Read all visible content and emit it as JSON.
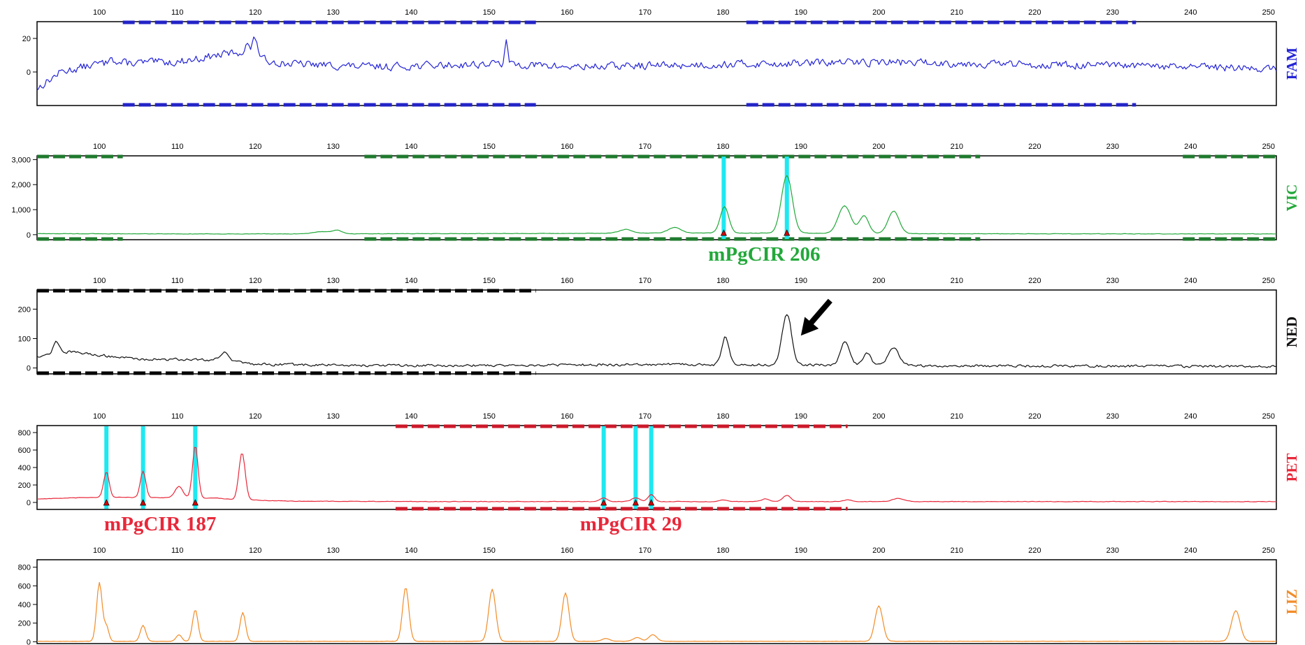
{
  "chart_data": {
    "type": "line",
    "x_ticks": [
      100,
      110,
      120,
      130,
      140,
      150,
      160,
      170,
      180,
      190,
      200,
      210,
      220,
      230,
      240,
      250
    ],
    "x_range": [
      92,
      251
    ],
    "panels": [
      {
        "dye": "FAM",
        "color": "#2323d6",
        "y_ticks": [
          "20",
          "0"
        ],
        "y_values": [
          20,
          0
        ],
        "y_range": [
          -20,
          30
        ],
        "baseline": 3,
        "noise": 3.2,
        "bins_color": "#2323c8",
        "bins": [
          [
            103,
            156
          ],
          [
            183,
            233
          ]
        ],
        "drift": [
          [
            92,
            -10
          ],
          [
            95,
            0
          ],
          [
            100,
            5
          ],
          [
            110,
            6
          ],
          [
            118,
            12
          ],
          [
            120,
            8
          ],
          [
            124,
            5
          ],
          [
            135,
            3
          ],
          [
            152,
            5
          ],
          [
            160,
            3
          ],
          [
            200,
            6
          ],
          [
            251,
            2
          ]
        ],
        "peaks": [
          [
            120,
            12,
            0.35
          ],
          [
            152.2,
            12,
            0.2
          ],
          [
            101.5,
            6,
            0.25
          ],
          [
            119,
            6,
            0.3
          ]
        ],
        "cursors": [],
        "markers": [],
        "labels": []
      },
      {
        "dye": "VIC",
        "color": "#22a83a",
        "y_ticks": [
          "3,000",
          "2,000",
          "1,000",
          "0"
        ],
        "y_values": [
          3000,
          2000,
          1000,
          0
        ],
        "y_range": [
          -200,
          3150
        ],
        "baseline": 30,
        "noise": 12,
        "bins_color": "#1f7a2e",
        "bins": [
          [
            92,
            103
          ],
          [
            134,
            213
          ],
          [
            239,
            251
          ]
        ],
        "drift": [
          [
            92,
            40
          ],
          [
            120,
            30
          ],
          [
            160,
            50
          ],
          [
            175,
            70
          ],
          [
            190,
            60
          ],
          [
            205,
            40
          ],
          [
            251,
            30
          ]
        ],
        "peaks": [
          [
            180.2,
            1050,
            0.55
          ],
          [
            188.2,
            2300,
            0.7
          ],
          [
            195.6,
            1100,
            0.8
          ],
          [
            198.1,
            700,
            0.6
          ],
          [
            201.9,
            900,
            0.7
          ],
          [
            167.5,
            150,
            0.8
          ],
          [
            173.8,
            220,
            0.8
          ],
          [
            128.5,
            90,
            1.0
          ],
          [
            130.5,
            140,
            0.6
          ]
        ],
        "cursors": [
          180.1,
          188.2
        ],
        "markers": [
          180.1,
          188.2
        ],
        "labels": [
          {
            "text": "mPgCIR 206",
            "x": 185.3
          }
        ]
      },
      {
        "dye": "NED",
        "color": "#111111",
        "y_ticks": [
          "200",
          "100",
          "0"
        ],
        "y_values": [
          200,
          100,
          0
        ],
        "y_range": [
          -20,
          265
        ],
        "baseline": 10,
        "noise": 6,
        "bins_color": "#000000",
        "bins": [
          [
            92,
            156
          ]
        ],
        "drift": [
          [
            92,
            40
          ],
          [
            96,
            55
          ],
          [
            105,
            30
          ],
          [
            115,
            28
          ],
          [
            120,
            12
          ],
          [
            140,
            8
          ],
          [
            175,
            12
          ],
          [
            205,
            8
          ],
          [
            251,
            5
          ]
        ],
        "peaks": [
          [
            180.3,
            95,
            0.45
          ],
          [
            188.2,
            175,
            0.6
          ],
          [
            195.7,
            80,
            0.6
          ],
          [
            198.5,
            45,
            0.5
          ],
          [
            201.9,
            60,
            0.7
          ],
          [
            94.5,
            40,
            0.4
          ],
          [
            116,
            30,
            0.5
          ]
        ],
        "cursors": [],
        "markers": [],
        "arrow": {
          "tip_x": 190,
          "tip_y": 110
        },
        "labels": []
      },
      {
        "dye": "PET",
        "color": "#e8283a",
        "y_ticks": [
          "800",
          "600",
          "400",
          "200",
          "0"
        ],
        "y_values": [
          800,
          600,
          400,
          200,
          0
        ],
        "y_range": [
          -80,
          880
        ],
        "baseline": 5,
        "noise": 4,
        "bins_color": "#cc1a2a",
        "bins": [
          [
            138,
            196
          ]
        ],
        "drift": [
          [
            92,
            40
          ],
          [
            100,
            60
          ],
          [
            115,
            50
          ],
          [
            118,
            30
          ],
          [
            125,
            15
          ],
          [
            140,
            10
          ],
          [
            251,
            10
          ]
        ],
        "peaks": [
          [
            100.9,
            290,
            0.35
          ],
          [
            105.6,
            300,
            0.35
          ],
          [
            112.3,
            600,
            0.35
          ],
          [
            118.3,
            540,
            0.4
          ],
          [
            110.2,
            130,
            0.5
          ],
          [
            164.7,
            40,
            0.5
          ],
          [
            168.8,
            45,
            0.5
          ],
          [
            170.8,
            80,
            0.4
          ],
          [
            188.2,
            70,
            0.5
          ],
          [
            185.5,
            30,
            0.5
          ],
          [
            202.5,
            35,
            0.8
          ],
          [
            180,
            20,
            0.5
          ],
          [
            196,
            20,
            0.5
          ]
        ],
        "cursors": [
          100.9,
          105.6,
          112.3,
          164.7,
          168.8,
          170.8
        ],
        "markers": [
          100.9,
          105.6,
          112.3,
          164.7,
          168.8,
          170.8
        ],
        "labels": [
          {
            "text": "mPgCIR 187",
            "x": 107.8
          },
          {
            "text": "mPgCIR 29",
            "x": 168.2
          }
        ]
      },
      {
        "dye": "LIZ",
        "color": "#f28c28",
        "y_ticks": [
          "800",
          "600",
          "400",
          "200",
          "0"
        ],
        "y_values": [
          800,
          600,
          400,
          200,
          0
        ],
        "y_range": [
          -20,
          880
        ],
        "baseline": 5,
        "noise": 2,
        "bins_color": "#f28c28",
        "bins": [],
        "drift": [
          [
            92,
            5
          ],
          [
            251,
            5
          ]
        ],
        "peaks": [
          [
            100,
            630,
            0.35
          ],
          [
            100.9,
            160,
            0.3
          ],
          [
            105.6,
            170,
            0.35
          ],
          [
            110.2,
            70,
            0.35
          ],
          [
            112.3,
            340,
            0.35
          ],
          [
            118.4,
            310,
            0.35
          ],
          [
            139.3,
            580,
            0.4
          ],
          [
            150.4,
            560,
            0.45
          ],
          [
            159.8,
            520,
            0.45
          ],
          [
            200,
            380,
            0.5
          ],
          [
            245.8,
            330,
            0.55
          ],
          [
            165,
            30,
            0.5
          ],
          [
            169,
            40,
            0.5
          ],
          [
            171,
            70,
            0.5
          ]
        ],
        "cursors": [],
        "markers": [],
        "labels": []
      }
    ]
  }
}
